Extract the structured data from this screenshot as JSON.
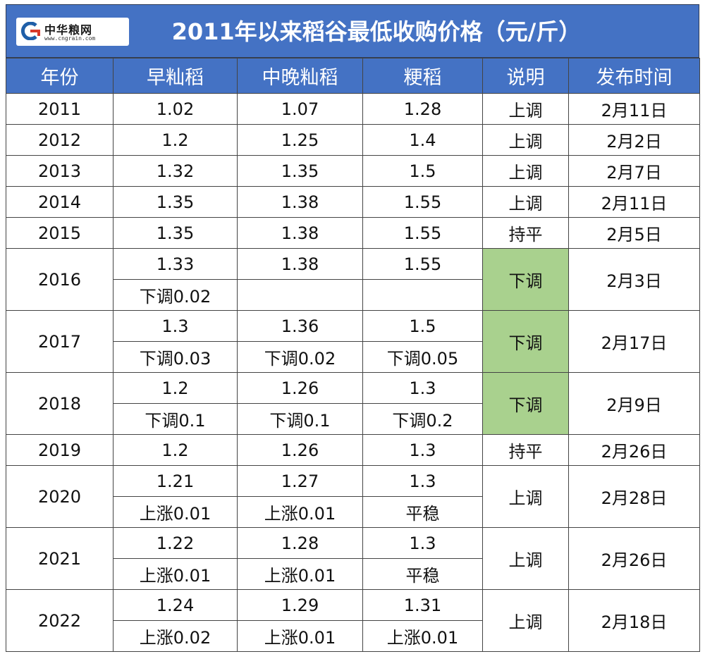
{
  "header": {
    "logo_name": "中华粮网",
    "logo_url": "www.cngrain.com",
    "title": "2011年以来稻谷最低收购价格（元/斤）"
  },
  "columns": [
    "年份",
    "早籼稻",
    "中晚籼稻",
    "粳稻",
    "说明",
    "发布时间"
  ],
  "rows": [
    {
      "year": "2011",
      "early": "1.02",
      "mid": "1.07",
      "japonica": "1.28",
      "note": "上调",
      "date": "2月11日"
    },
    {
      "year": "2012",
      "early": "1.2",
      "mid": "1.25",
      "japonica": "1.4",
      "note": "上调",
      "date": "2月2日"
    },
    {
      "year": "2013",
      "early": "1.32",
      "mid": "1.35",
      "japonica": "1.5",
      "note": "上调",
      "date": "2月7日"
    },
    {
      "year": "2014",
      "early": "1.35",
      "mid": "1.38",
      "japonica": "1.55",
      "note": "上调",
      "date": "2月11日"
    },
    {
      "year": "2015",
      "early": "1.35",
      "mid": "1.38",
      "japonica": "1.55",
      "note": "持平",
      "date": "2月5日"
    },
    {
      "year": "2016",
      "early": "1.33",
      "mid": "1.38",
      "japonica": "1.55",
      "early_change": "下调0.02",
      "mid_change": "",
      "japonica_change": "",
      "note": "下调",
      "date": "2月3日"
    },
    {
      "year": "2017",
      "early": "1.3",
      "mid": "1.36",
      "japonica": "1.5",
      "early_change": "下调0.03",
      "mid_change": "下调0.02",
      "japonica_change": "下调0.05",
      "note": "下调",
      "date": "2月17日"
    },
    {
      "year": "2018",
      "early": "1.2",
      "mid": "1.26",
      "japonica": "1.3",
      "early_change": "下调0.1",
      "mid_change": "下调0.1",
      "japonica_change": "下调0.2",
      "note": "下调",
      "date": "2月9日"
    },
    {
      "year": "2019",
      "early": "1.2",
      "mid": "1.26",
      "japonica": "1.3",
      "note": "持平",
      "date": "2月26日"
    },
    {
      "year": "2020",
      "early": "1.21",
      "mid": "1.27",
      "japonica": "1.3",
      "early_change": "上涨0.01",
      "mid_change": "上涨0.01",
      "japonica_change": "平稳",
      "note": "上调",
      "date": "2月28日"
    },
    {
      "year": "2021",
      "early": "1.22",
      "mid": "1.28",
      "japonica": "1.3",
      "early_change": "上涨0.01",
      "mid_change": "上涨0.01",
      "japonica_change": "平稳",
      "note": "上调",
      "date": "2月26日"
    },
    {
      "year": "2022",
      "early": "1.24",
      "mid": "1.29",
      "japonica": "1.31",
      "early_change": "上涨0.02",
      "mid_change": "上涨0.01",
      "japonica_change": "上涨0.01",
      "note": "上调",
      "date": "2月18日"
    }
  ],
  "colors": {
    "header_blue": "#4472c4",
    "note_up_red": "#e02020",
    "note_down_green": "#a9d18e"
  }
}
